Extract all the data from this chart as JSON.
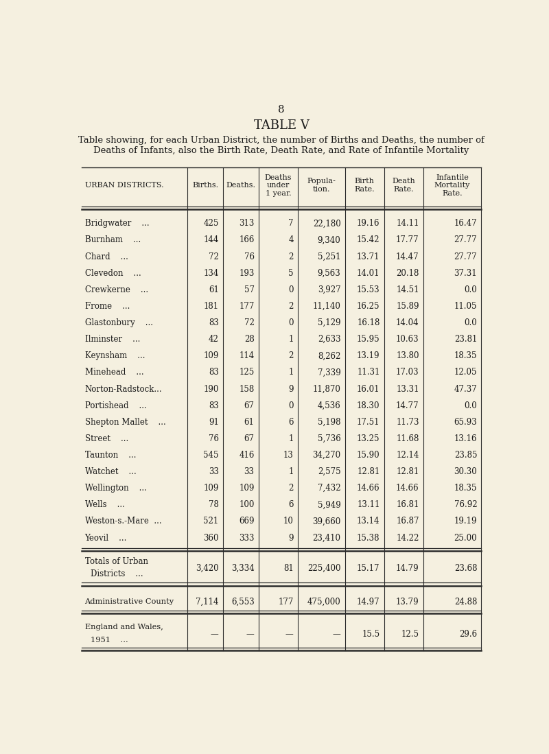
{
  "page_number": "8",
  "title": "TABLE V",
  "subtitle": "Table showing, for each Urban District, the number of Births and Deaths, the number of\nDeaths of Infants, also the Birth Rate, Death Rate, and Rate of Infantile Mortality",
  "col_headers": [
    "URBAN DISTRICTS.",
    "Births.",
    "Deaths.",
    "Deaths\nunder\n1 year.",
    "Popula-\ntion.",
    "Birth\nRate.",
    "Death\nRate.",
    "Infantile\nMortality\nRate."
  ],
  "rows": [
    [
      "Bridgwater    ...",
      "425",
      "313",
      "7",
      "22,180",
      "19.16",
      "14.11",
      "16.47"
    ],
    [
      "Burnham    ...",
      "144",
      "166",
      "4",
      "9,340",
      "15.42",
      "17.77",
      "27.77"
    ],
    [
      "Chard    ...",
      "72",
      "76",
      "2",
      "5,251",
      "13.71",
      "14.47",
      "27.77"
    ],
    [
      "Clevedon    ...",
      "134",
      "193",
      "5",
      "9,563",
      "14.01",
      "20.18",
      "37.31"
    ],
    [
      "Crewkerne    ...",
      "61",
      "57",
      "0",
      "3,927",
      "15.53",
      "14.51",
      "0.0"
    ],
    [
      "Frome    ...",
      "181",
      "177",
      "2",
      "11,140",
      "16.25",
      "15.89",
      "11.05"
    ],
    [
      "Glastonbury    ...",
      "83",
      "72",
      "0",
      "5,129",
      "16.18",
      "14.04",
      "0.0"
    ],
    [
      "Ilminster    ...",
      "42",
      "28",
      "1",
      "2,633",
      "15.95",
      "10.63",
      "23.81"
    ],
    [
      "Keynsham    ...",
      "109",
      "114",
      "2",
      "8,262",
      "13.19",
      "13.80",
      "18.35"
    ],
    [
      "Minehead    ...",
      "83",
      "125",
      "1",
      "7,339",
      "11.31",
      "17.03",
      "12.05"
    ],
    [
      "Norton-Radstock...",
      "190",
      "158",
      "9",
      "11,870",
      "16.01",
      "13.31",
      "47.37"
    ],
    [
      "Portishead    ...",
      "83",
      "67",
      "0",
      "4,536",
      "18.30",
      "14.77",
      "0.0"
    ],
    [
      "Shepton Mallet    ...",
      "91",
      "61",
      "6",
      "5,198",
      "17.51",
      "11.73",
      "65.93"
    ],
    [
      "Street    ...",
      "76",
      "67",
      "1",
      "5,736",
      "13.25",
      "11.68",
      "13.16"
    ],
    [
      "Taunton    ...",
      "545",
      "416",
      "13",
      "34,270",
      "15.90",
      "12.14",
      "23.85"
    ],
    [
      "Watchet    ...",
      "33",
      "33",
      "1",
      "2,575",
      "12.81",
      "12.81",
      "30.30"
    ],
    [
      "Wellington    ...",
      "109",
      "109",
      "2",
      "7,432",
      "14.66",
      "14.66",
      "18.35"
    ],
    [
      "Wells    ...",
      "78",
      "100",
      "6",
      "5,949",
      "13.11",
      "16.81",
      "76.92"
    ],
    [
      "Weston-s.-Mare  ...",
      "521",
      "669",
      "10",
      "39,660",
      "13.14",
      "16.87",
      "19.19"
    ],
    [
      "Yeovil    ...",
      "360",
      "333",
      "9",
      "23,410",
      "15.38",
      "14.22",
      "25.00"
    ]
  ],
  "totals_row": [
    "Totals of Urban\nDistricts    ...",
    "3,420",
    "3,334",
    "81",
    "225,400",
    "15.17",
    "14.79",
    "23.68"
  ],
  "admin_row": [
    "Administrative County",
    "7,114",
    "6,553",
    "177",
    "475,000",
    "14.97",
    "13.79",
    "24.88"
  ],
  "england_row": [
    "England and Wales,\n1951    ...",
    "—",
    "—",
    "—",
    "—",
    "15.5",
    "12.5",
    "29.6"
  ],
  "bg_color": "#f5f0e0",
  "text_color": "#1a1a1a",
  "line_color": "#2a2a2a"
}
